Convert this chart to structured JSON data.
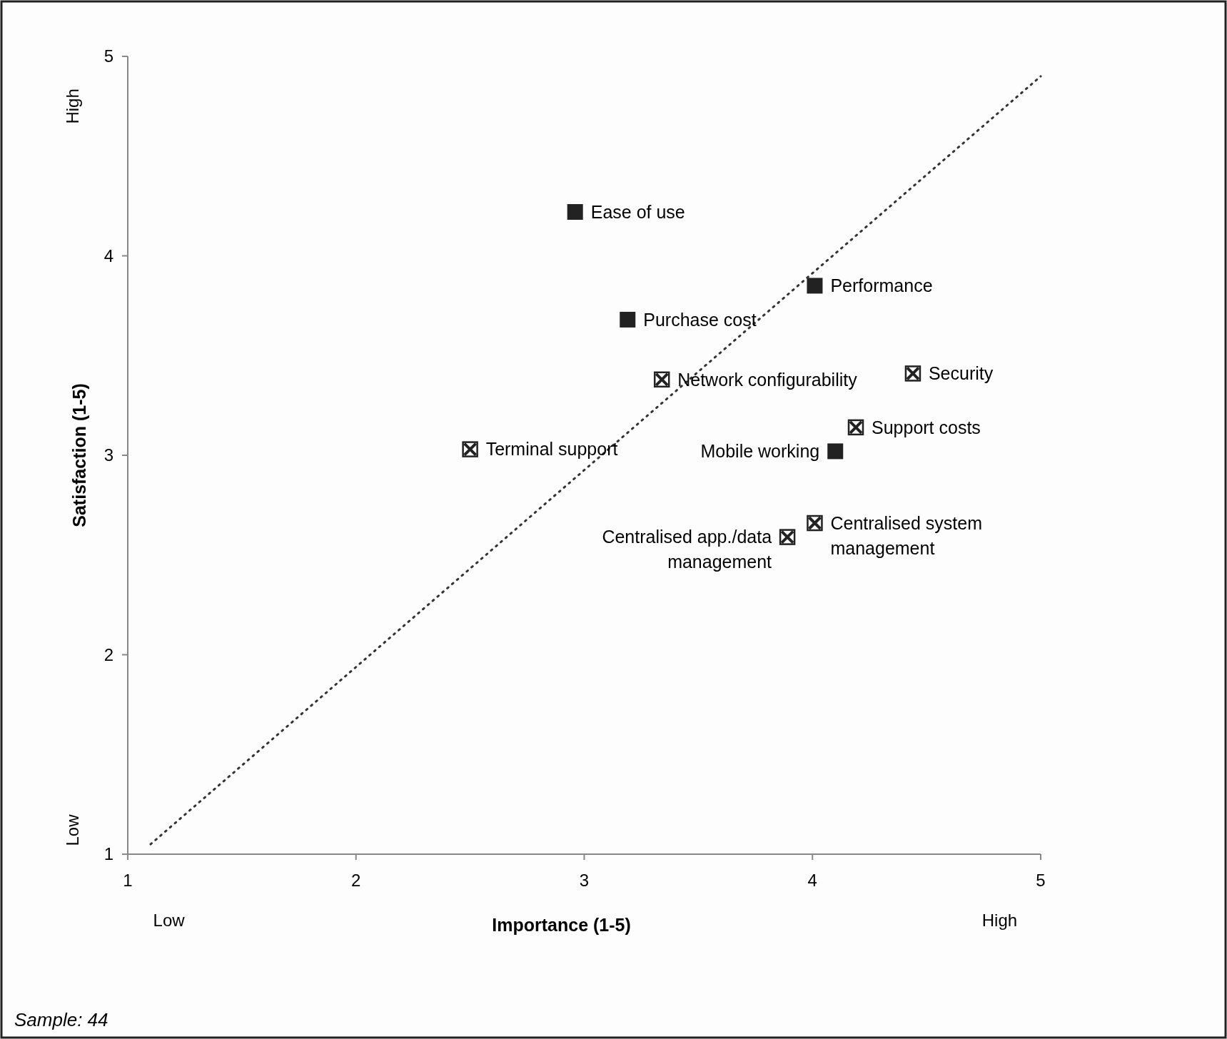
{
  "chart_data": {
    "type": "scatter",
    "xlabel": "Importance (1-5)",
    "ylabel": "Satisfaction (1-5)",
    "xlim": [
      1,
      5
    ],
    "ylim": [
      1,
      5
    ],
    "xticks": [
      1,
      2,
      3,
      4,
      5
    ],
    "yticks": [
      1,
      2,
      3,
      4,
      5
    ],
    "series": [
      {
        "marker": "square",
        "color": "#222222",
        "x": [
          2.96,
          4.01,
          3.19,
          4.1
        ],
        "values": [
          4.22,
          3.85,
          3.68,
          3.02
        ]
      },
      {
        "marker": "cross",
        "color": "#222222",
        "x": [
          3.34,
          4.44,
          4.19,
          2.5,
          3.89,
          4.01
        ],
        "values": [
          3.38,
          3.41,
          3.14,
          3.03,
          2.59,
          2.66
        ]
      },
      {
        "type": "line",
        "line_style": "dotted",
        "color": "#333333",
        "x": [
          1.1,
          5.0
        ],
        "values": [
          1.05,
          4.9
        ]
      }
    ],
    "annotations": [
      "Low",
      "High",
      "Low",
      "High",
      "Sample: 44",
      {
        "text": "Ease of use",
        "x": 2.96,
        "y": 4.22
      },
      {
        "text": "Performance",
        "x": 4.01,
        "y": 3.85
      },
      {
        "text": "Purchase cost",
        "x": 3.19,
        "y": 3.68
      },
      {
        "text": "Mobile working",
        "x": 4.1,
        "y": 3.02
      },
      {
        "text": "Network configurability",
        "x": 3.34,
        "y": 3.38
      },
      {
        "text": "Security",
        "x": 4.44,
        "y": 3.41
      },
      {
        "text": "Support costs",
        "x": 4.19,
        "y": 3.14
      },
      {
        "text": "Terminal support",
        "x": 2.5,
        "y": 3.03
      },
      {
        "text": "Centralised app./data\nmanagement",
        "x": 3.89,
        "y": 2.59
      },
      {
        "text": "Centralised system\nmanagement",
        "x": 4.01,
        "y": 2.66
      }
    ]
  }
}
